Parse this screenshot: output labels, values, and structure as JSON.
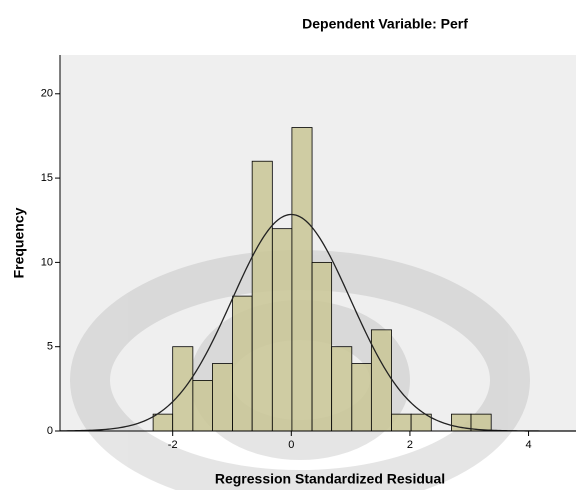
{
  "chart_data": {
    "type": "histogram",
    "title": "Dependent Variable: Perf",
    "x_label": "Regression Standardized Residual",
    "y_label": "Frequency",
    "bins": [
      -2.33,
      -2.0,
      -1.66,
      -1.33,
      -0.99,
      -0.66,
      -0.32,
      0.01,
      0.35,
      0.68,
      1.02,
      1.35,
      1.69,
      2.02,
      2.36,
      2.7,
      3.03,
      3.37
    ],
    "counts": [
      1,
      5,
      3,
      4,
      8,
      16,
      12,
      18,
      10,
      5,
      4,
      6,
      1,
      1,
      0,
      1,
      1
    ],
    "color": "#c9c595",
    "curve": {
      "mean": 0,
      "sd": 1.0
    },
    "xlim": [
      -3.9,
      4.8
    ],
    "ylim": [
      0,
      22.3
    ],
    "xticks": [
      -2,
      0,
      2,
      4
    ],
    "yticks": [
      0,
      5,
      10,
      15,
      20
    ]
  }
}
